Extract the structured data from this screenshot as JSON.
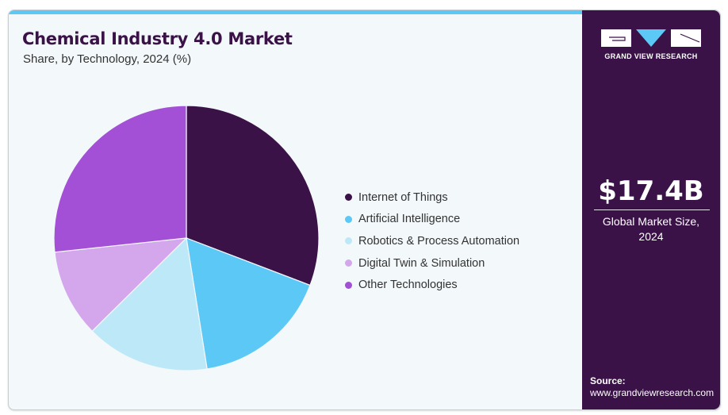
{
  "header": {
    "title": "Chemical Industry 4.0 Market",
    "subtitle": "Share, by Technology, 2024 (%)"
  },
  "brand": {
    "name": "GRAND VIEW RESEARCH",
    "colors": {
      "primary": "#3a1248",
      "accent": "#5bc8f5"
    }
  },
  "summary": {
    "value": "$17.4B",
    "label_line1": "Global Market Size,",
    "label_line2": "2024"
  },
  "source": {
    "label": "Source:",
    "url": "www.grandviewresearch.com"
  },
  "chart_data": {
    "type": "pie",
    "title": "Chemical Industry 4.0 Market",
    "subtitle": "Share, by Technology, 2024 (%)",
    "start_angle": "12 o'clock, clockwise",
    "legend_position": "right",
    "categories": [
      "Internet of Things",
      "Artificial Intelligence",
      "Robotics & Process Automation",
      "Digital Twin & Simulation",
      "Other Technologies"
    ],
    "values": [
      30.8,
      16.7,
      15.1,
      10.7,
      26.7
    ],
    "colors": [
      "#3a1248",
      "#5bc8f5",
      "#bde8f8",
      "#d4a7ec",
      "#a34fd6"
    ]
  }
}
